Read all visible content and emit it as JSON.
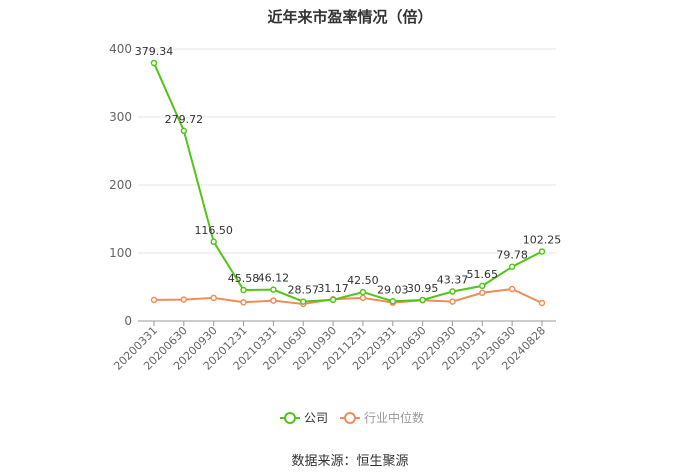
{
  "chart_data": {
    "type": "line",
    "title": "近年来市盈率情况（倍）",
    "xlabel": "",
    "ylabel": "",
    "categories": [
      "20200331",
      "20200630",
      "20200930",
      "20201231",
      "20210331",
      "20210630",
      "20210930",
      "20211231",
      "20220331",
      "20220630",
      "20220930",
      "20230331",
      "20230630",
      "20240828"
    ],
    "ylim": [
      0,
      400
    ],
    "yticks": [
      0,
      100,
      200,
      300,
      400
    ],
    "grid": true,
    "legend_position": "bottom",
    "series": [
      {
        "name": "公司",
        "color": "#52c41a",
        "values": [
          379.34,
          279.72,
          116.5,
          45.58,
          46.12,
          28.57,
          31.17,
          42.5,
          29.03,
          30.95,
          43.37,
          51.65,
          79.78,
          102.25
        ],
        "labels": [
          "379.34",
          "279.72",
          "116.50",
          "45.58",
          "46.12",
          "28.57",
          "31.17",
          "42.50",
          "29.03",
          "30.95",
          "43.37",
          "51.65",
          "79.78",
          "102.25"
        ]
      },
      {
        "name": "行业中位数",
        "color": "#f08c5a",
        "values": [
          31,
          31.5,
          34,
          27.5,
          30,
          25,
          32,
          34,
          27,
          30.5,
          28.5,
          41.5,
          47,
          26.5
        ]
      }
    ]
  },
  "source_note": "数据来源：恒生聚源"
}
